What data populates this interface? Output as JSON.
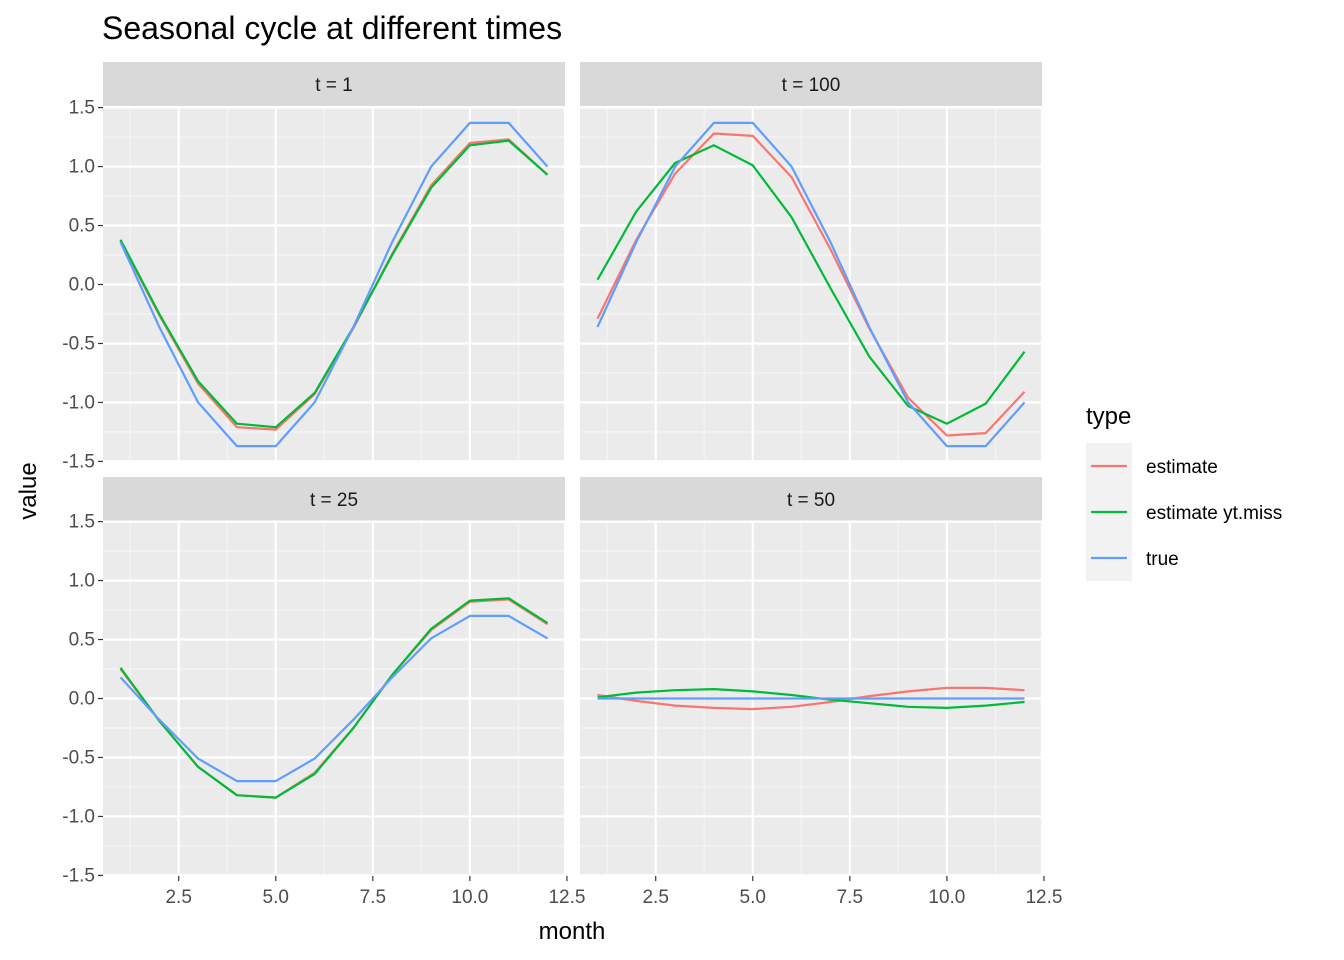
{
  "chart_data": {
    "type": "line",
    "title": "Seasonal cycle at different times",
    "xlabel": "month",
    "ylabel": "value",
    "xlim": [
      0.55,
      12.45
    ],
    "ylim": [
      -1.5,
      1.5
    ],
    "x_ticks": [
      2.5,
      5.0,
      7.5,
      10.0,
      12.5
    ],
    "x_tick_labels": [
      "2.5",
      "5.0",
      "7.5",
      "10.0",
      "12.5"
    ],
    "y_ticks": [
      -1.5,
      -1.0,
      -0.5,
      0.0,
      0.5,
      1.0,
      1.5
    ],
    "y_tick_labels": [
      "-1.5",
      "-1.0",
      "-0.5",
      "0.0",
      "0.5",
      "1.0",
      "1.5"
    ],
    "legend": {
      "title": "type",
      "placement": "right"
    },
    "series_styles": [
      {
        "name": "estimate",
        "color": "#F8766D"
      },
      {
        "name": "estimate yt.miss",
        "color": "#00BA38"
      },
      {
        "name": "true",
        "color": "#619CFF"
      }
    ],
    "panels": [
      {
        "label": "t = 1",
        "x": [
          1,
          2,
          3,
          4,
          5,
          6,
          7,
          8,
          9,
          10,
          11,
          12
        ],
        "series": [
          {
            "name": "estimate",
            "values": [
              0.37,
              -0.26,
              -0.84,
              -1.21,
              -1.23,
              -0.93,
              -0.37,
              0.26,
              0.84,
              1.2,
              1.23,
              0.93
            ]
          },
          {
            "name": "estimate yt.miss",
            "values": [
              0.38,
              -0.25,
              -0.82,
              -1.18,
              -1.21,
              -0.92,
              -0.36,
              0.25,
              0.82,
              1.18,
              1.22,
              0.93
            ]
          },
          {
            "name": "true",
            "values": [
              0.36,
              -0.36,
              -1.0,
              -1.37,
              -1.37,
              -1.0,
              -0.36,
              0.36,
              1.0,
              1.37,
              1.37,
              1.0
            ]
          }
        ]
      },
      {
        "label": "t = 100",
        "x": [
          1,
          2,
          3,
          4,
          5,
          6,
          7,
          8,
          9,
          10,
          11,
          12
        ],
        "series": [
          {
            "name": "estimate",
            "values": [
              -0.29,
              0.38,
              0.94,
              1.28,
              1.26,
              0.91,
              0.3,
              -0.37,
              -0.96,
              -1.28,
              -1.26,
              -0.91
            ]
          },
          {
            "name": "estimate yt.miss",
            "values": [
              0.04,
              0.62,
              1.03,
              1.18,
              1.01,
              0.57,
              -0.03,
              -0.61,
              -1.03,
              -1.18,
              -1.01,
              -0.57
            ]
          },
          {
            "name": "true",
            "values": [
              -0.36,
              0.36,
              1.0,
              1.37,
              1.37,
              1.0,
              0.36,
              -0.36,
              -1.0,
              -1.37,
              -1.37,
              -1.0
            ]
          }
        ]
      },
      {
        "label": "t = 25",
        "x": [
          1,
          2,
          3,
          4,
          5,
          6,
          7,
          8,
          9,
          10,
          11,
          12
        ],
        "series": [
          {
            "name": "estimate",
            "values": [
              0.25,
              -0.19,
              -0.58,
              -0.82,
              -0.84,
              -0.63,
              -0.25,
              0.2,
              0.58,
              0.82,
              0.84,
              0.63
            ]
          },
          {
            "name": "estimate yt.miss",
            "values": [
              0.26,
              -0.19,
              -0.58,
              -0.82,
              -0.84,
              -0.64,
              -0.25,
              0.2,
              0.59,
              0.83,
              0.85,
              0.64
            ]
          },
          {
            "name": "true",
            "values": [
              0.18,
              -0.18,
              -0.51,
              -0.7,
              -0.7,
              -0.51,
              -0.18,
              0.18,
              0.51,
              0.7,
              0.7,
              0.51
            ]
          }
        ]
      },
      {
        "label": "t = 50",
        "x": [
          1,
          2,
          3,
          4,
          5,
          6,
          7,
          8,
          9,
          10,
          11,
          12
        ],
        "series": [
          {
            "name": "estimate",
            "values": [
              0.03,
              -0.02,
              -0.06,
              -0.08,
              -0.09,
              -0.07,
              -0.03,
              0.02,
              0.06,
              0.09,
              0.09,
              0.07
            ]
          },
          {
            "name": "estimate yt.miss",
            "values": [
              0.01,
              0.05,
              0.07,
              0.08,
              0.06,
              0.03,
              -0.01,
              -0.04,
              -0.07,
              -0.08,
              -0.06,
              -0.03
            ]
          },
          {
            "name": "true",
            "values": [
              0.0,
              0.0,
              0.0,
              0.0,
              0.0,
              0.0,
              0.0,
              0.0,
              0.0,
              0.0,
              0.0,
              0.0
            ]
          }
        ]
      }
    ]
  }
}
